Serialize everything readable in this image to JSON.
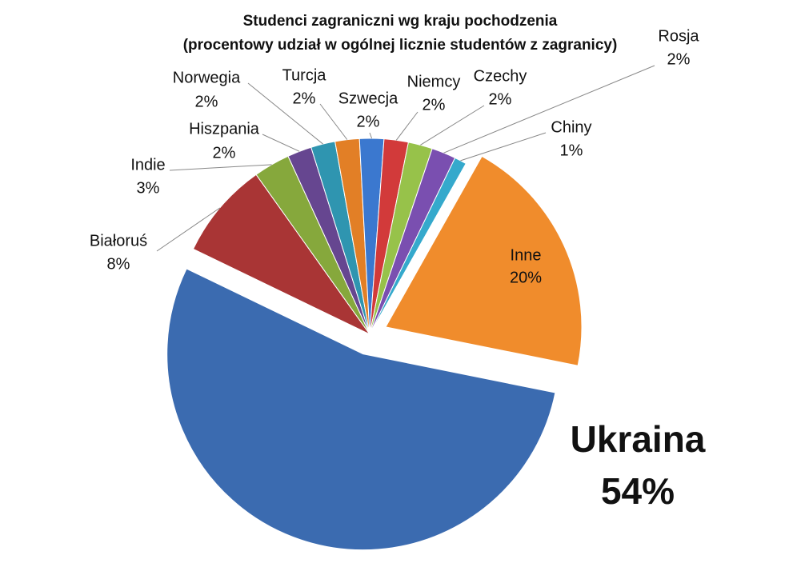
{
  "chart_data": {
    "type": "pie",
    "title": "Studenci zagraniczni wg kraju pochodzenia",
    "subtitle": "(procentowy udział w ogólnej licznie studentów z zagranicy)",
    "categories": [
      "Ukraina",
      "Białoruś",
      "Indie",
      "Hiszpania",
      "Norwegia",
      "Turcja",
      "Szwecja",
      "Niemcy",
      "Czechy",
      "Rosja",
      "Chiny",
      "Inne"
    ],
    "values": [
      54,
      8,
      3,
      2,
      2,
      2,
      2,
      2,
      2,
      2,
      1,
      20
    ],
    "value_labels": [
      "54%",
      "8%",
      "3%",
      "2%",
      "2%",
      "2%",
      "2%",
      "2%",
      "2%",
      "2%",
      "1%",
      "20%"
    ],
    "colors": [
      "#3b6bb0",
      "#a93535",
      "#86a83c",
      "#664690",
      "#2f95b0",
      "#e27f26",
      "#3b78cf",
      "#d23a3a",
      "#97c24a",
      "#7a4fb0",
      "#35a9cc",
      "#f08c2c"
    ]
  }
}
